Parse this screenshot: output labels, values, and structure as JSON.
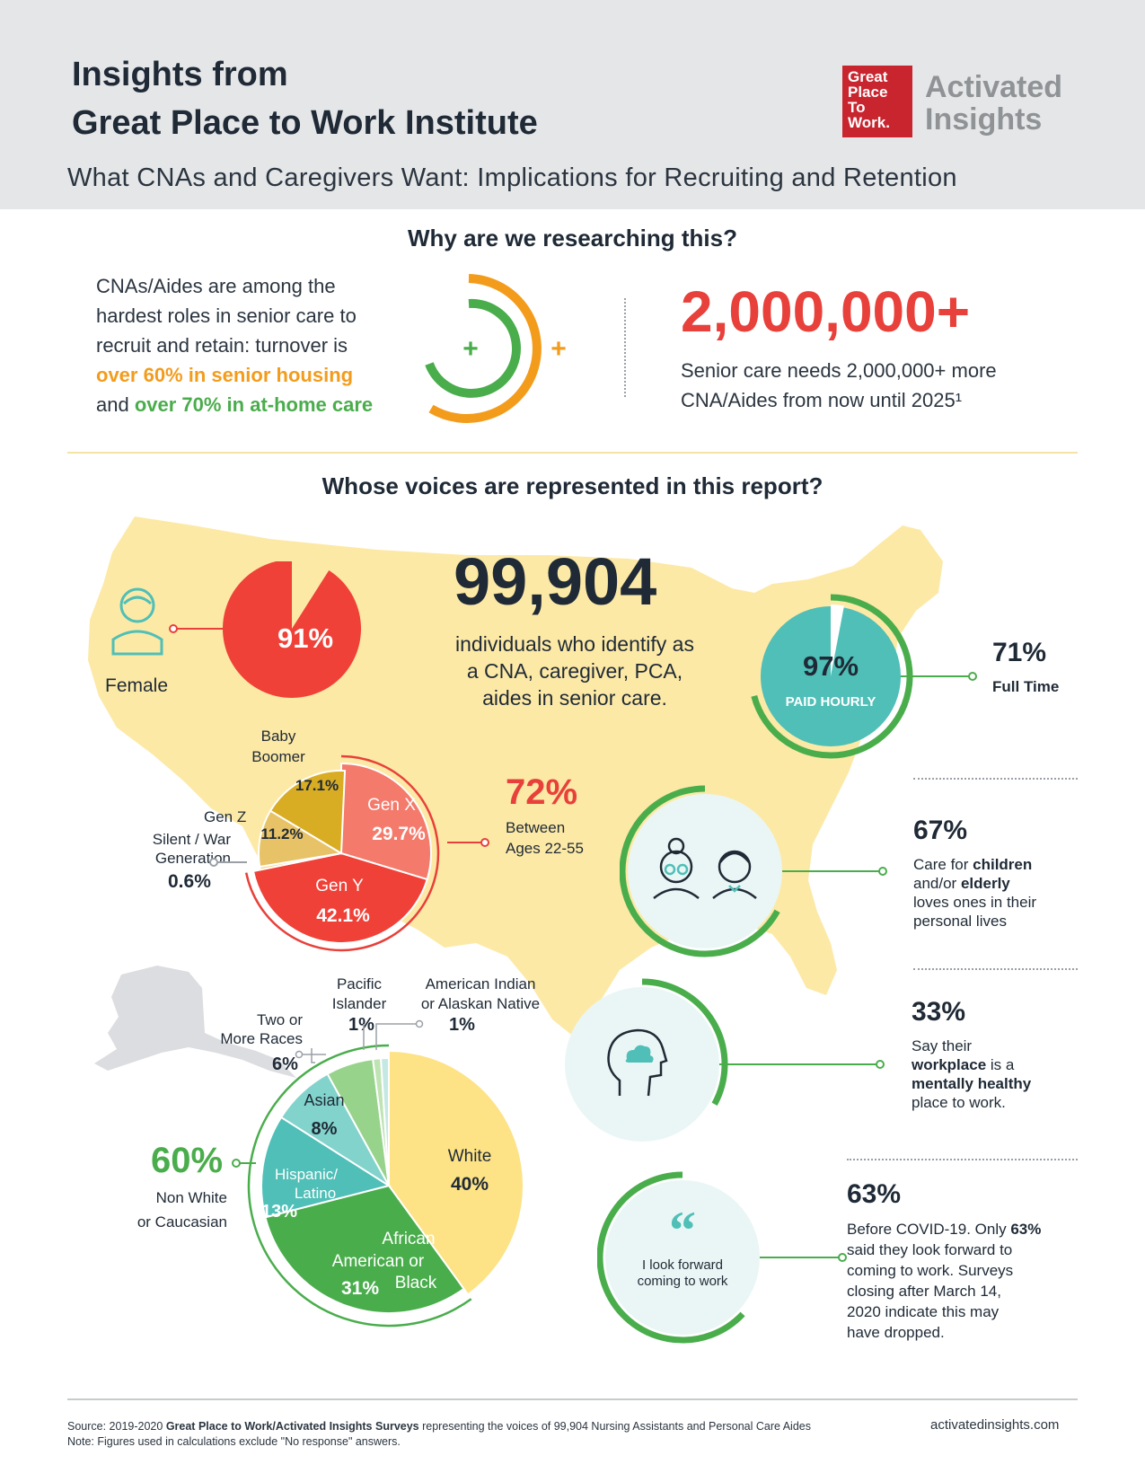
{
  "header": {
    "title_line1": "Insights from",
    "title_line2": "Great Place to Work Institute",
    "subtitle": "What CNAs and Caregivers Want: Implications for Recruiting and Retention",
    "logo_box_lines": [
      "Great",
      "Place",
      "To",
      "Work."
    ],
    "logo_text_line1": "Activated",
    "logo_text_line2": "Insights"
  },
  "why": {
    "heading": "Why are we researching this?",
    "text_1": "CNAs/Aides are among the",
    "text_2": "hardest roles in senior care to",
    "text_3": "recruit and retain: turnover is",
    "highlight_orange": "over 60% in senior housing",
    "text_and": "and ",
    "highlight_green": "over 70% in at-home care",
    "plus": "+",
    "big_number": "2,000,000+",
    "need_line1": "Senior care needs 2,000,000+ more",
    "need_line2": "CNA/Aides from now until 2025¹"
  },
  "voices": {
    "heading": "Whose voices are represented in this report?",
    "count": "99,904",
    "count_line1": "individuals who identify as",
    "count_line2": "a CNA, caregiver, PCA,",
    "count_line3": "aides in senior care.",
    "female_label": "Female",
    "female_pct": "91%",
    "hourly_pct": "97%",
    "hourly_label": "PAID HOURLY",
    "fulltime_pct": "71%",
    "fulltime_label": "Full Time",
    "age_pct": "72%",
    "age_line1": "Between",
    "age_line2": "Ages 22-55",
    "care_pct": "67%",
    "care_l1a": "Care for ",
    "care_l1b": "children",
    "care_l2a": "and/or ",
    "care_l2b": "elderly",
    "care_l3": "loves ones in their",
    "care_l4": "personal lives",
    "mental_pct": "33%",
    "mental_l1": "Say their",
    "mental_l2a": "workplace",
    "mental_l2b": " is a",
    "mental_l3": "mentally healthy",
    "mental_l4": "place to work.",
    "quote_mark": "“",
    "quote_line1": "I look forward",
    "quote_line2": "coming to work",
    "covid_pct": "63%",
    "covid_l1a": "Before COVID-19. Only ",
    "covid_l1b": "63%",
    "covid_l2": "said they look forward to",
    "covid_l3": "coming to work. Surveys",
    "covid_l4": "closing after March 14,",
    "covid_l5": "2020 indicate this may",
    "covid_l6": "have dropped.",
    "nonwhite_pct": "60%",
    "nonwhite_line1": "Non White",
    "nonwhite_line2": "or Caucasian"
  },
  "generations": [
    {
      "name": "Gen X",
      "pct": "29.7%",
      "color": "#f47a6c"
    },
    {
      "name": "Gen Y",
      "pct": "42.1%",
      "color": "#ef4138"
    },
    {
      "name": "Silent / War Generation",
      "pct": "0.6%",
      "color": "#f5d27a"
    },
    {
      "name": "Gen Z",
      "pct": "11.2%",
      "color": "#e8c266"
    },
    {
      "name": "Baby Boomer",
      "pct": "17.1%",
      "color": "#d8ac23"
    }
  ],
  "gen_labels": {
    "baby1": "Baby",
    "baby2": "Boomer",
    "genz": "Gen Z",
    "silent1": "Silent / War",
    "silent2": "Generation"
  },
  "race": [
    {
      "name": "White",
      "pct": "40%",
      "color": "#fde286"
    },
    {
      "name": "African American or Black",
      "pct": "31%",
      "color": "#4aad4c"
    },
    {
      "name": "Hispanic/Latino",
      "pct": "13%",
      "color": "#4fbfb7"
    },
    {
      "name": "Asian",
      "pct": "8%",
      "color": "#82d3cc"
    },
    {
      "name": "Two or More Races",
      "pct": "6%",
      "color": "#98d38c"
    },
    {
      "name": "Pacific Islander",
      "pct": "1%",
      "color": "#bfe3b3"
    },
    {
      "name": "American Indian or Alaskan Native",
      "pct": "1%",
      "color": "#c4e8e4"
    }
  ],
  "race_labels": {
    "pac1": "Pacific",
    "pac2": "Islander",
    "ai1": "American Indian",
    "ai2": "or Alaskan Native",
    "two1": "Two or",
    "two2": "More Races",
    "hisp1": "Hispanic/",
    "hisp2": "Latino",
    "aa1": "African",
    "aa2": "American or",
    "aa3": "Black"
  },
  "footer": {
    "source_prefix": "Source: 2019-2020 ",
    "source_bold": "Great Place to Work/Activated Insights Surveys",
    "source_rest": " representing the voices of 99,904 Nursing Assistants and Personal Care Aides",
    "note": "Note: Figures used in calculations exclude \"No response\" answers.",
    "url": "activatedinsights.com"
  },
  "colors": {
    "red": "#e8403a",
    "orange": "#f39c1c",
    "green": "#4aad4c",
    "teal": "#4fbfb7",
    "map": "#fde9a6",
    "alaska": "#dcdde0"
  }
}
